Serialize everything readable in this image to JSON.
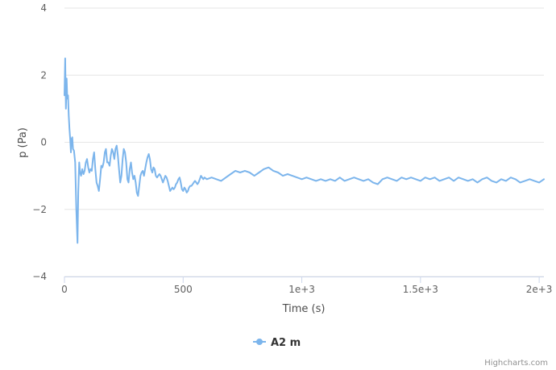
{
  "chart_data": {
    "type": "line",
    "title": "",
    "xlabel": "Time (s)",
    "ylabel": "p (Pa)",
    "xlim": [
      0,
      2020
    ],
    "ylim": [
      -4,
      4
    ],
    "xticks": [
      {
        "value": 0,
        "label": "0"
      },
      {
        "value": 500,
        "label": "500"
      },
      {
        "value": 1000,
        "label": "1e+3"
      },
      {
        "value": 1500,
        "label": "1.5e+3"
      },
      {
        "value": 2000,
        "label": "2e+3"
      }
    ],
    "yticks": [
      {
        "value": -4,
        "label": "−4"
      },
      {
        "value": -2,
        "label": "−2"
      },
      {
        "value": 0,
        "label": "0"
      },
      {
        "value": 2,
        "label": "2"
      },
      {
        "value": 4,
        "label": "4"
      }
    ],
    "grid": true,
    "legend_position": "bottom-center",
    "series": [
      {
        "name": "A2 m",
        "color": "#7cb5ec",
        "points": [
          [
            0,
            1.4
          ],
          [
            3,
            2.5
          ],
          [
            6,
            1.0
          ],
          [
            9,
            1.9
          ],
          [
            12,
            1.3
          ],
          [
            15,
            1.4
          ],
          [
            18,
            0.8
          ],
          [
            21,
            0.4
          ],
          [
            24,
            0.1
          ],
          [
            27,
            -0.3
          ],
          [
            30,
            0.1
          ],
          [
            33,
            0.15
          ],
          [
            36,
            -0.2
          ],
          [
            40,
            -0.25
          ],
          [
            45,
            -0.6
          ],
          [
            50,
            -2.0
          ],
          [
            55,
            -3.0
          ],
          [
            58,
            -1.5
          ],
          [
            62,
            -0.6
          ],
          [
            66,
            -0.9
          ],
          [
            70,
            -1.0
          ],
          [
            75,
            -0.8
          ],
          [
            80,
            -0.95
          ],
          [
            85,
            -0.85
          ],
          [
            90,
            -0.6
          ],
          [
            95,
            -0.5
          ],
          [
            100,
            -0.75
          ],
          [
            105,
            -0.9
          ],
          [
            110,
            -0.8
          ],
          [
            115,
            -0.85
          ],
          [
            120,
            -0.5
          ],
          [
            125,
            -0.3
          ],
          [
            130,
            -0.8
          ],
          [
            135,
            -1.2
          ],
          [
            140,
            -1.3
          ],
          [
            145,
            -1.45
          ],
          [
            150,
            -1.1
          ],
          [
            155,
            -0.7
          ],
          [
            160,
            -0.75
          ],
          [
            165,
            -0.6
          ],
          [
            170,
            -0.3
          ],
          [
            175,
            -0.2
          ],
          [
            180,
            -0.6
          ],
          [
            185,
            -0.6
          ],
          [
            190,
            -0.7
          ],
          [
            195,
            -0.4
          ],
          [
            200,
            -0.2
          ],
          [
            205,
            -0.3
          ],
          [
            210,
            -0.5
          ],
          [
            215,
            -0.2
          ],
          [
            220,
            -0.1
          ],
          [
            225,
            -0.4
          ],
          [
            230,
            -0.8
          ],
          [
            235,
            -1.2
          ],
          [
            240,
            -1.0
          ],
          [
            245,
            -0.5
          ],
          [
            250,
            -0.2
          ],
          [
            255,
            -0.3
          ],
          [
            260,
            -0.6
          ],
          [
            265,
            -1.1
          ],
          [
            270,
            -1.2
          ],
          [
            275,
            -0.8
          ],
          [
            280,
            -0.6
          ],
          [
            285,
            -0.9
          ],
          [
            290,
            -1.1
          ],
          [
            295,
            -1.0
          ],
          [
            300,
            -1.2
          ],
          [
            305,
            -1.5
          ],
          [
            310,
            -1.6
          ],
          [
            315,
            -1.3
          ],
          [
            320,
            -1.0
          ],
          [
            325,
            -0.9
          ],
          [
            330,
            -0.85
          ],
          [
            335,
            -1.0
          ],
          [
            340,
            -0.8
          ],
          [
            345,
            -0.6
          ],
          [
            350,
            -0.45
          ],
          [
            355,
            -0.35
          ],
          [
            360,
            -0.5
          ],
          [
            365,
            -0.8
          ],
          [
            370,
            -0.9
          ],
          [
            375,
            -0.75
          ],
          [
            380,
            -0.8
          ],
          [
            385,
            -1.0
          ],
          [
            390,
            -1.05
          ],
          [
            395,
            -1.0
          ],
          [
            400,
            -0.95
          ],
          [
            405,
            -1.0
          ],
          [
            410,
            -1.1
          ],
          [
            415,
            -1.2
          ],
          [
            420,
            -1.1
          ],
          [
            425,
            -1.0
          ],
          [
            430,
            -1.05
          ],
          [
            435,
            -1.15
          ],
          [
            440,
            -1.3
          ],
          [
            445,
            -1.45
          ],
          [
            450,
            -1.4
          ],
          [
            455,
            -1.35
          ],
          [
            460,
            -1.4
          ],
          [
            465,
            -1.35
          ],
          [
            470,
            -1.25
          ],
          [
            475,
            -1.2
          ],
          [
            480,
            -1.1
          ],
          [
            485,
            -1.05
          ],
          [
            490,
            -1.2
          ],
          [
            495,
            -1.4
          ],
          [
            500,
            -1.45
          ],
          [
            505,
            -1.35
          ],
          [
            510,
            -1.4
          ],
          [
            515,
            -1.5
          ],
          [
            520,
            -1.45
          ],
          [
            525,
            -1.35
          ],
          [
            530,
            -1.3
          ],
          [
            535,
            -1.3
          ],
          [
            540,
            -1.25
          ],
          [
            545,
            -1.2
          ],
          [
            550,
            -1.15
          ],
          [
            555,
            -1.2
          ],
          [
            560,
            -1.25
          ],
          [
            565,
            -1.2
          ],
          [
            570,
            -1.1
          ],
          [
            575,
            -1.0
          ],
          [
            580,
            -1.05
          ],
          [
            585,
            -1.1
          ],
          [
            590,
            -1.05
          ],
          [
            600,
            -1.1
          ],
          [
            620,
            -1.05
          ],
          [
            640,
            -1.1
          ],
          [
            660,
            -1.15
          ],
          [
            680,
            -1.05
          ],
          [
            700,
            -0.95
          ],
          [
            720,
            -0.85
          ],
          [
            740,
            -0.9
          ],
          [
            760,
            -0.85
          ],
          [
            780,
            -0.9
          ],
          [
            800,
            -1.0
          ],
          [
            820,
            -0.9
          ],
          [
            840,
            -0.8
          ],
          [
            860,
            -0.75
          ],
          [
            880,
            -0.85
          ],
          [
            900,
            -0.9
          ],
          [
            920,
            -1.0
          ],
          [
            940,
            -0.95
          ],
          [
            960,
            -1.0
          ],
          [
            980,
            -1.05
          ],
          [
            1000,
            -1.1
          ],
          [
            1020,
            -1.05
          ],
          [
            1040,
            -1.1
          ],
          [
            1060,
            -1.15
          ],
          [
            1080,
            -1.1
          ],
          [
            1100,
            -1.15
          ],
          [
            1120,
            -1.1
          ],
          [
            1140,
            -1.15
          ],
          [
            1160,
            -1.05
          ],
          [
            1180,
            -1.15
          ],
          [
            1200,
            -1.1
          ],
          [
            1220,
            -1.05
          ],
          [
            1240,
            -1.1
          ],
          [
            1260,
            -1.15
          ],
          [
            1280,
            -1.1
          ],
          [
            1300,
            -1.2
          ],
          [
            1320,
            -1.25
          ],
          [
            1340,
            -1.1
          ],
          [
            1360,
            -1.05
          ],
          [
            1380,
            -1.1
          ],
          [
            1400,
            -1.15
          ],
          [
            1420,
            -1.05
          ],
          [
            1440,
            -1.1
          ],
          [
            1460,
            -1.05
          ],
          [
            1480,
            -1.1
          ],
          [
            1500,
            -1.15
          ],
          [
            1520,
            -1.05
          ],
          [
            1540,
            -1.1
          ],
          [
            1560,
            -1.05
          ],
          [
            1580,
            -1.15
          ],
          [
            1600,
            -1.1
          ],
          [
            1620,
            -1.05
          ],
          [
            1640,
            -1.15
          ],
          [
            1660,
            -1.05
          ],
          [
            1680,
            -1.1
          ],
          [
            1700,
            -1.15
          ],
          [
            1720,
            -1.1
          ],
          [
            1740,
            -1.2
          ],
          [
            1760,
            -1.1
          ],
          [
            1780,
            -1.05
          ],
          [
            1800,
            -1.15
          ],
          [
            1820,
            -1.2
          ],
          [
            1840,
            -1.1
          ],
          [
            1860,
            -1.15
          ],
          [
            1880,
            -1.05
          ],
          [
            1900,
            -1.1
          ],
          [
            1920,
            -1.2
          ],
          [
            1940,
            -1.15
          ],
          [
            1960,
            -1.1
          ],
          [
            1980,
            -1.15
          ],
          [
            2000,
            -1.2
          ],
          [
            2020,
            -1.1
          ]
        ]
      }
    ]
  },
  "legend": {
    "label": "A2 m"
  },
  "credits": {
    "text": "Highcharts.com"
  }
}
